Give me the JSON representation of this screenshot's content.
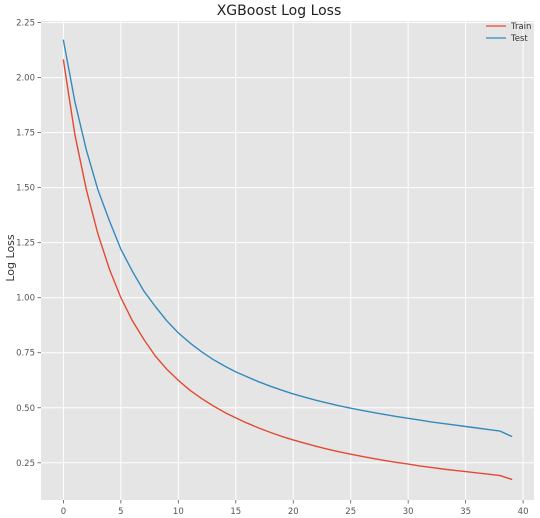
{
  "chart_data": {
    "type": "line",
    "title": "XGBoost Log Loss",
    "xlabel": "",
    "ylabel": "Log Loss",
    "xlim": [
      -1.95,
      40.95
    ],
    "ylim": [
      0.081,
      2.257
    ],
    "xticks": [
      "0",
      "5",
      "10",
      "15",
      "20",
      "25",
      "30",
      "35",
      "40"
    ],
    "yticks": [
      "0.25",
      "0.50",
      "0.75",
      "1.00",
      "1.25",
      "1.50",
      "1.75",
      "2.00",
      "2.25"
    ],
    "grid": true,
    "legend": "top-right",
    "series": [
      {
        "name": "Train",
        "color": "#e24a33",
        "x": [
          0,
          1,
          2,
          3,
          4,
          5,
          6,
          7,
          8,
          9,
          10,
          11,
          12,
          13,
          14,
          15,
          16,
          17,
          18,
          19,
          20,
          21,
          22,
          23,
          24,
          25,
          26,
          27,
          28,
          29,
          30,
          31,
          32,
          33,
          34,
          35,
          36,
          37,
          38,
          39
        ],
        "values": [
          2.08,
          1.74,
          1.49,
          1.29,
          1.13,
          1.0,
          0.895,
          0.81,
          0.735,
          0.675,
          0.625,
          0.58,
          0.543,
          0.51,
          0.48,
          0.454,
          0.43,
          0.408,
          0.388,
          0.37,
          0.354,
          0.339,
          0.325,
          0.312,
          0.3,
          0.289,
          0.279,
          0.269,
          0.26,
          0.252,
          0.244,
          0.236,
          0.229,
          0.222,
          0.216,
          0.21,
          0.204,
          0.198,
          0.192,
          0.175
        ]
      },
      {
        "name": "Test",
        "color": "#348abd",
        "x": [
          0,
          1,
          2,
          3,
          4,
          5,
          6,
          7,
          8,
          9,
          10,
          11,
          12,
          13,
          14,
          15,
          16,
          17,
          18,
          19,
          20,
          21,
          22,
          23,
          24,
          25,
          26,
          27,
          28,
          29,
          30,
          31,
          32,
          33,
          34,
          35,
          36,
          37,
          38,
          39
        ],
        "values": [
          2.17,
          1.89,
          1.67,
          1.49,
          1.35,
          1.22,
          1.12,
          1.03,
          0.96,
          0.895,
          0.84,
          0.795,
          0.755,
          0.72,
          0.69,
          0.663,
          0.64,
          0.618,
          0.598,
          0.58,
          0.563,
          0.548,
          0.534,
          0.521,
          0.509,
          0.498,
          0.488,
          0.478,
          0.469,
          0.46,
          0.452,
          0.444,
          0.436,
          0.429,
          0.422,
          0.415,
          0.408,
          0.401,
          0.394,
          0.37
        ]
      }
    ]
  }
}
